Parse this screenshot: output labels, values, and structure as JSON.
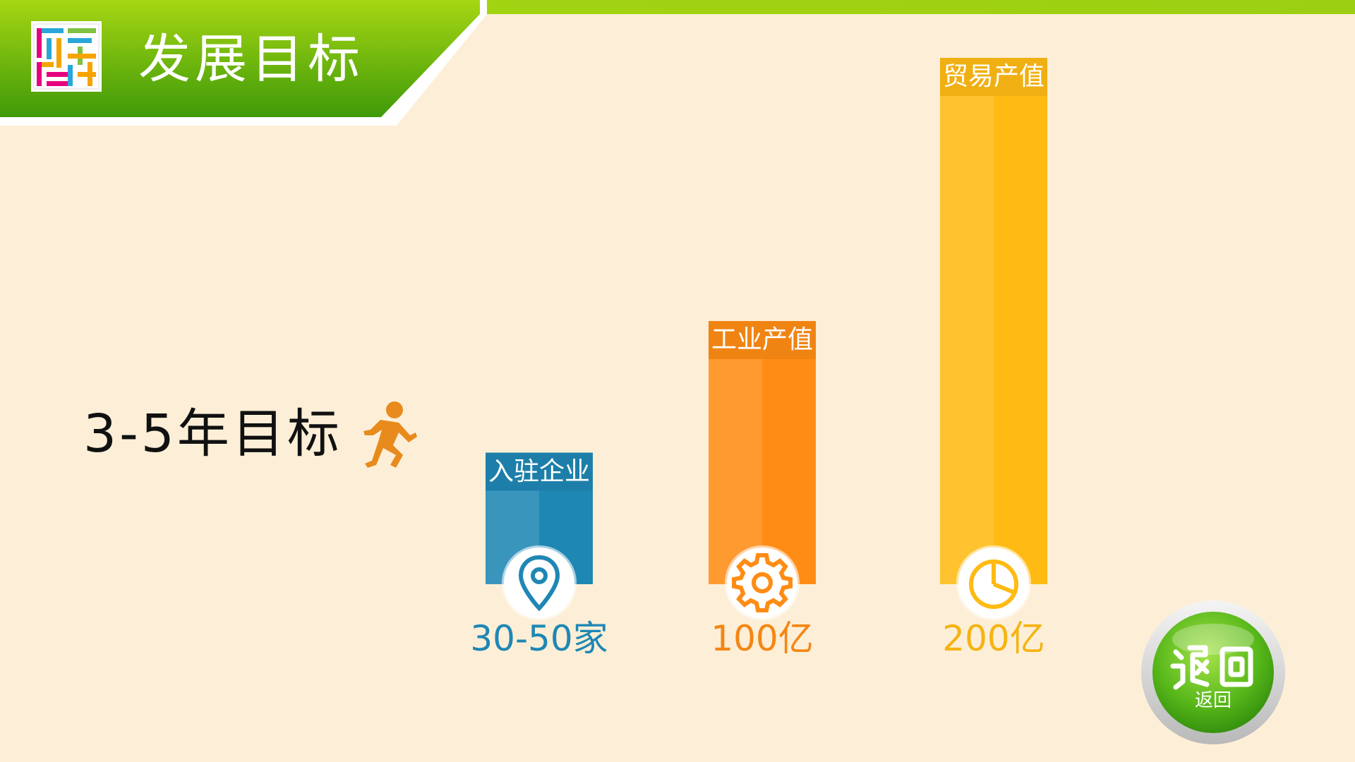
{
  "header": {
    "title": "发展目标"
  },
  "subtitle": "3-5年目标",
  "return_button": {
    "seal_text": "返回",
    "label": "返回"
  },
  "colors": {
    "background": "#fdefd7",
    "header_green_light": "#a6d613",
    "header_green_dark": "#3f9a09",
    "runner": "#e88a1c",
    "blue_bar": "#1f87b4",
    "orange_bar": "#ff8c14",
    "yellow_bar": "#ffbb14"
  },
  "icons": {
    "logo": "colorful-maze-logo",
    "runner": "running-person-icon",
    "bars": [
      "location-pin-icon",
      "gear-icon",
      "pie-chart-icon"
    ]
  },
  "chart_data": {
    "type": "bar",
    "categories": [
      "入驻企业",
      "工业产值",
      "贸易产值"
    ],
    "value_labels": [
      "30-50家",
      "100亿",
      "200亿"
    ],
    "values": [
      50,
      100,
      200
    ],
    "units": [
      "家",
      "亿",
      "亿"
    ],
    "ylim": [
      0,
      200
    ],
    "colors": [
      "#1f87b4",
      "#ff8c14",
      "#ffbb14"
    ],
    "grid": false,
    "legend": "none"
  }
}
